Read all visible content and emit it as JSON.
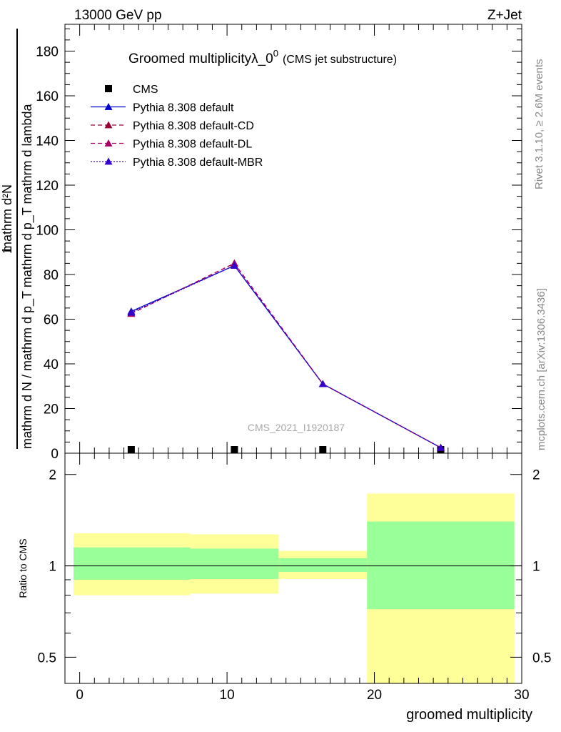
{
  "header": {
    "left": "13000 GeV pp",
    "right": "Z+Jet"
  },
  "title": {
    "main": "Groomed multiplicityλ_0",
    "sup": "0",
    "suffix": "(CMS jet substructure)"
  },
  "side_labels": {
    "rivet": "Rivet 3.1.10, ≥ 2.6M events",
    "mcplots": "mcplots.cern.ch [arXiv:1306.3436]"
  },
  "watermark": "CMS_2021_I1920187",
  "colors": {
    "default": "#0000cc",
    "cd": "#990033",
    "dl": "#aa0066",
    "mbr": "#3300cc",
    "band_inner": "#99ff99",
    "band_outer": "#ffff99"
  },
  "chart_data": [
    {
      "type": "line",
      "ylabel_numerator": "1",
      "ylabel_denominator": "mathrm d N / mathrm d p_T mathrm d p_T mathrm d lambda",
      "ylabel_top": "mathrm d²N",
      "ylim": [
        0,
        192
      ],
      "yticks": [
        0,
        20,
        40,
        60,
        80,
        100,
        120,
        140,
        160,
        180
      ],
      "xlim": [
        -1,
        30
      ],
      "legend_position": "top-left",
      "series": [
        {
          "name": "CMS",
          "marker": "square",
          "x": [
            3.5,
            10.5,
            16.5,
            24.5
          ],
          "y": [
            0,
            0,
            0,
            0
          ]
        },
        {
          "name": "Pythia 8.308 default",
          "style": "solid",
          "color_key": "default",
          "x": [
            3.5,
            10.5,
            16.5,
            24.5
          ],
          "y": [
            63.5,
            84.0,
            31.0,
            2.5
          ]
        },
        {
          "name": "Pythia 8.308 default-CD",
          "style": "dashed",
          "color_key": "cd",
          "x": [
            3.5,
            10.5,
            16.5,
            24.5
          ],
          "y": [
            62.5,
            85.0,
            31.0,
            2.5
          ]
        },
        {
          "name": "Pythia 8.308 default-DL",
          "style": "dashed",
          "color_key": "dl",
          "x": [
            3.5,
            10.5,
            16.5,
            24.5
          ],
          "y": [
            62.5,
            85.0,
            31.0,
            2.5
          ]
        },
        {
          "name": "Pythia 8.308 default-MBR",
          "style": "dotted",
          "color_key": "mbr",
          "x": [
            3.5,
            10.5,
            16.5,
            24.5
          ],
          "y": [
            63.0,
            84.0,
            31.0,
            2.5
          ]
        }
      ]
    },
    {
      "type": "area",
      "ylabel": "Ratio to CMS",
      "xlabel": "groomed multiplicity",
      "yscale": "log",
      "ylim": [
        0.41,
        2.35
      ],
      "yticks": [
        0.5,
        1,
        2
      ],
      "xlim": [
        -1,
        30
      ],
      "xticks": [
        0,
        10,
        20,
        30
      ],
      "reference_line": 1,
      "bins": [
        {
          "xlow": -1,
          "xhigh": 7.5,
          "inner": [
            0.9,
            1.15
          ],
          "outer": [
            0.8,
            1.28
          ]
        },
        {
          "xlow": 7.5,
          "xhigh": 13.5,
          "inner": [
            0.905,
            1.14
          ],
          "outer": [
            0.81,
            1.27
          ]
        },
        {
          "xlow": 13.5,
          "xhigh": 19.5,
          "inner": [
            0.955,
            1.06
          ],
          "outer": [
            0.905,
            1.12
          ]
        },
        {
          "xlow": 19.5,
          "xhigh": 29.5,
          "inner": [
            0.72,
            1.4
          ],
          "outer": [
            0.41,
            1.73
          ]
        }
      ]
    }
  ]
}
